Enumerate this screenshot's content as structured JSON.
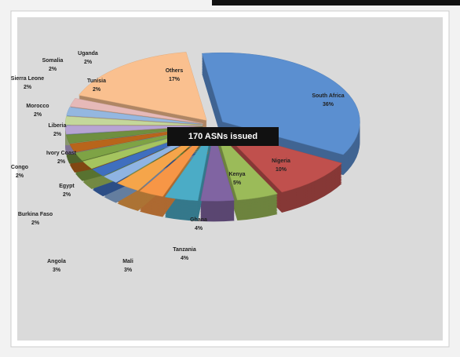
{
  "chart_data": {
    "type": "pie",
    "annotation": "170  ASNs issued",
    "categories": [
      "South Africa",
      "Nigeria",
      "Kenya",
      "Ghana",
      "Tanzania",
      "Mali",
      "Angola",
      "Burkina Faso",
      "Egypt",
      "Congo",
      "Ivory Coast",
      "Liberia",
      "Morocco",
      "Sierra Leone",
      "Somalia",
      "Uganda",
      "Tunisia",
      "Others"
    ],
    "values": [
      36,
      10,
      5,
      4,
      4,
      3,
      3,
      2,
      2,
      2,
      2,
      2,
      2,
      2,
      2,
      2,
      2,
      17
    ],
    "value_labels": [
      "36%",
      "10%",
      "5%",
      "4%",
      "4%",
      "3%",
      "3%",
      "2%",
      "2%",
      "2%",
      "2%",
      "2%",
      "2%",
      "2%",
      "2%",
      "2%",
      "2%",
      "17%"
    ],
    "colors": [
      "#5b8fd0",
      "#c0504d",
      "#9bbb59",
      "#8064a2",
      "#4bacc6",
      "#f79646",
      "#f5a54a",
      "#8fb4e3",
      "#3f6fbf",
      "#a5c45f",
      "#7ea345",
      "#b8651b",
      "#6f8f3f",
      "#b7a4d3",
      "#c4d79b",
      "#94b7e0",
      "#e6b9b8",
      "#fac08f"
    ]
  }
}
